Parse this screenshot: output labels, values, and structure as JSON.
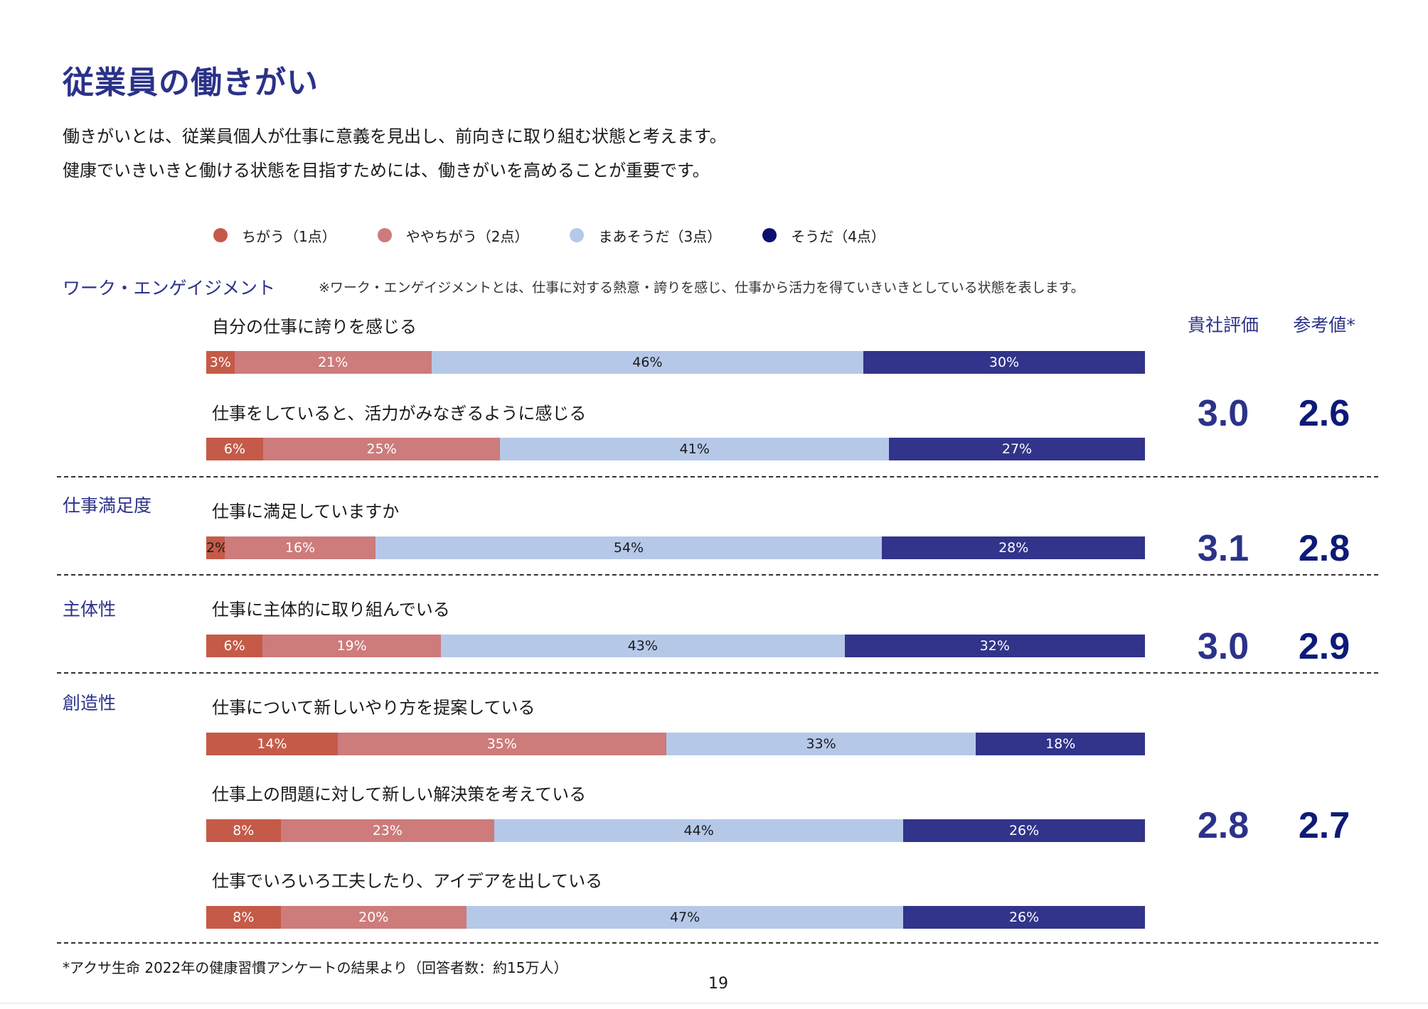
{
  "page": {
    "title": "従業員の働きがい",
    "intro_1": "働きがいとは、従業員個人が仕事に意義を見出し、前向きに取り組む状態と考えます。",
    "intro_2": "健康でいきいきと働ける状態を目指すためには、働きがいを高めることが重要です。",
    "footnote": "*アクサ生命 2022年の健康習慣アンケートの結果より（回答者数：約15万人）",
    "page_number": "19"
  },
  "colors": {
    "c1": "#c55a48",
    "c2": "#cd7b7b",
    "c3": "#b5c8e8",
    "c4": "#31348a",
    "legend_c4": "#0b1070",
    "title": "#2b3289"
  },
  "legend": [
    {
      "label": "ちがう（1点）",
      "color": "#c55a48"
    },
    {
      "label": "ややちがう（2点）",
      "color": "#cd7b7b"
    },
    {
      "label": "まあそうだ（3点）",
      "color": "#b5c8e8"
    },
    {
      "label": "そうだ（4点）",
      "color": "#0b1070"
    }
  ],
  "columns": {
    "company": "貴社評価",
    "reference": "参考値*"
  },
  "sections": [
    {
      "label": "ワーク・エンゲイジメント",
      "note": "※ワーク・エンゲイジメントとは、仕事に対する熱意・誇りを感じ、仕事から活力を得ていきいきとしている状態を表します。",
      "company": "3.0",
      "reference": "2.6"
    },
    {
      "label": "仕事満足度",
      "company": "3.1",
      "reference": "2.8"
    },
    {
      "label": "主体性",
      "company": "3.0",
      "reference": "2.9"
    },
    {
      "label": "創造性",
      "company": "2.8",
      "reference": "2.7"
    }
  ],
  "chart_data": {
    "type": "bar",
    "stacked": true,
    "orientation": "horizontal",
    "unit": "%",
    "series_names": [
      "ちがう（1点）",
      "ややちがう（2点）",
      "まあそうだ（3点）",
      "そうだ（4点）"
    ],
    "categories": [
      "自分の仕事に誇りを感じる",
      "仕事をしていると、活力がみなぎるように感じる",
      "仕事に満足していますか",
      "仕事に主体的に取り組んでいる",
      "仕事について新しいやり方を提案している",
      "仕事上の問題に対して新しい解決策を考えている",
      "仕事でいろいろ工夫したり、アイデアを出している"
    ],
    "values": [
      [
        3,
        21,
        46,
        30
      ],
      [
        6,
        25,
        41,
        27
      ],
      [
        2,
        16,
        54,
        28
      ],
      [
        6,
        19,
        43,
        32
      ],
      [
        14,
        35,
        33,
        18
      ],
      [
        8,
        23,
        44,
        26
      ],
      [
        8,
        20,
        47,
        26
      ]
    ],
    "labels": [
      [
        "3%",
        "21%",
        "46%",
        "30%"
      ],
      [
        "6%",
        "25%",
        "41%",
        "27%"
      ],
      [
        "2%",
        "16%",
        "54%",
        "28%"
      ],
      [
        "6%",
        "19%",
        "43%",
        "32%"
      ],
      [
        "14%",
        "35%",
        "33%",
        "18%"
      ],
      [
        "8%",
        "23%",
        "44%",
        "26%"
      ],
      [
        "8%",
        "20%",
        "47%",
        "26%"
      ]
    ],
    "legend_position": "top",
    "grid": false
  }
}
